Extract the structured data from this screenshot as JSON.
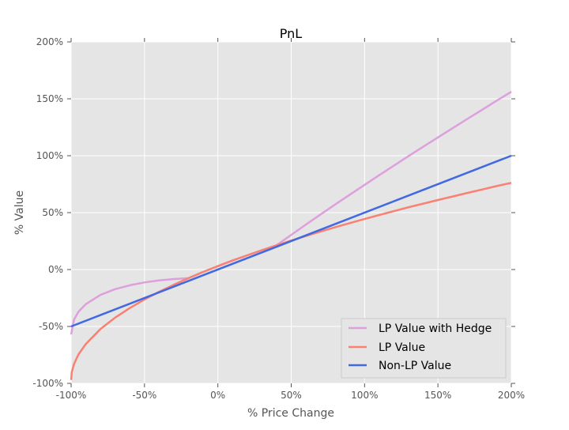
{
  "chart_data": {
    "type": "line",
    "title": "PnL",
    "xlabel": "% Price Change",
    "ylabel": "% Value",
    "xlim": [
      -100,
      200
    ],
    "ylim": [
      -100,
      200
    ],
    "xticks": [
      -100,
      -50,
      0,
      50,
      100,
      150,
      200
    ],
    "yticks": [
      -100,
      -50,
      0,
      50,
      100,
      150,
      200
    ],
    "xtick_labels": [
      "-100%",
      "-50%",
      "0%",
      "50%",
      "100%",
      "150%",
      "200%"
    ],
    "ytick_labels": [
      "-100%",
      "-50%",
      "0%",
      "50%",
      "100%",
      "150%",
      "200%"
    ],
    "grid": true,
    "legend_position": "lower-right",
    "series": [
      {
        "name": "LP Value with Hedge",
        "color": "#dda0dd",
        "x": [
          -100,
          -98,
          -95,
          -90,
          -80,
          -70,
          -60,
          -50,
          -40,
          -30,
          -20,
          -10,
          0,
          10,
          20,
          30,
          40,
          50,
          60,
          70,
          80,
          90,
          100,
          110,
          120,
          130,
          140,
          150,
          160,
          170,
          180,
          190,
          200
        ],
        "y": [
          -57,
          -43.9,
          -37.1,
          -30.4,
          -22.3,
          -17.2,
          -13.8,
          -11.3,
          -9.5,
          -8.3,
          -7.6,
          -2.1,
          3,
          7.9,
          12.5,
          17.0,
          21.3,
          30.5,
          39.5,
          48.4,
          57.2,
          65.8,
          74.4,
          82.9,
          91.3,
          99.7,
          107.9,
          116.1,
          124.2,
          132.3,
          140.3,
          148.3,
          156.2
        ]
      },
      {
        "name": "LP Value",
        "color": "#fa8072",
        "x": [
          -100,
          -99.5,
          -98,
          -95,
          -90,
          -80,
          -70,
          -60,
          -50,
          -40,
          -30,
          -20,
          -10,
          0,
          10,
          20,
          30,
          40,
          50,
          60,
          70,
          80,
          90,
          100,
          110,
          120,
          130,
          140,
          150,
          160,
          170,
          180,
          190,
          200
        ],
        "y": [
          -97,
          -89.9,
          -82.9,
          -74.6,
          -65.4,
          -52.3,
          -42.2,
          -33.8,
          -26.3,
          -19.5,
          -13.3,
          -7.6,
          -2.1,
          3,
          7.9,
          12.5,
          17.0,
          21.3,
          25.5,
          29.5,
          33.4,
          37.2,
          40.8,
          44.4,
          47.9,
          51.3,
          54.7,
          57.9,
          61.1,
          64.2,
          67.3,
          70.3,
          73.3,
          76.2
        ]
      },
      {
        "name": "Non-LP Value",
        "color": "#4169e1",
        "x": [
          -100,
          200
        ],
        "y": [
          -50,
          100
        ]
      }
    ]
  }
}
